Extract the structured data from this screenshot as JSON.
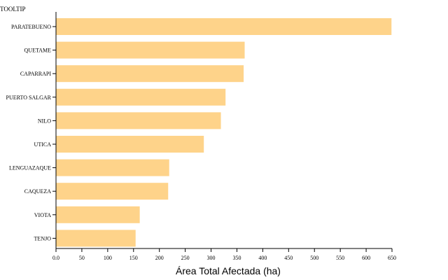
{
  "tooltip_label": "TOOLTIP",
  "chart_data": {
    "type": "bar",
    "orientation": "horizontal",
    "categories": [
      "PARATEBUENO",
      "QUETAME",
      "CAPARRAPI",
      "PUERTO SALGAR",
      "NILO",
      "UTICA",
      "LENGUAZAQUE",
      "CAQUEZA",
      "VIOTA",
      "TENJO"
    ],
    "values": [
      649,
      365,
      363,
      328,
      319,
      286,
      219,
      217,
      162,
      154
    ],
    "xlabel": "Área Total Afectada (ha)",
    "ylabel": "",
    "xlim": [
      0,
      650
    ],
    "xticks": [
      0,
      50,
      100,
      150,
      200,
      250,
      300,
      350,
      400,
      450,
      500,
      550,
      600,
      650
    ],
    "xtick_labels": [
      "0.0",
      "50",
      "100",
      "150",
      "200",
      "250",
      "300",
      "350",
      "400",
      "450",
      "500",
      "550",
      "600",
      "650"
    ],
    "bar_color": "#fed38a",
    "grid": false
  }
}
